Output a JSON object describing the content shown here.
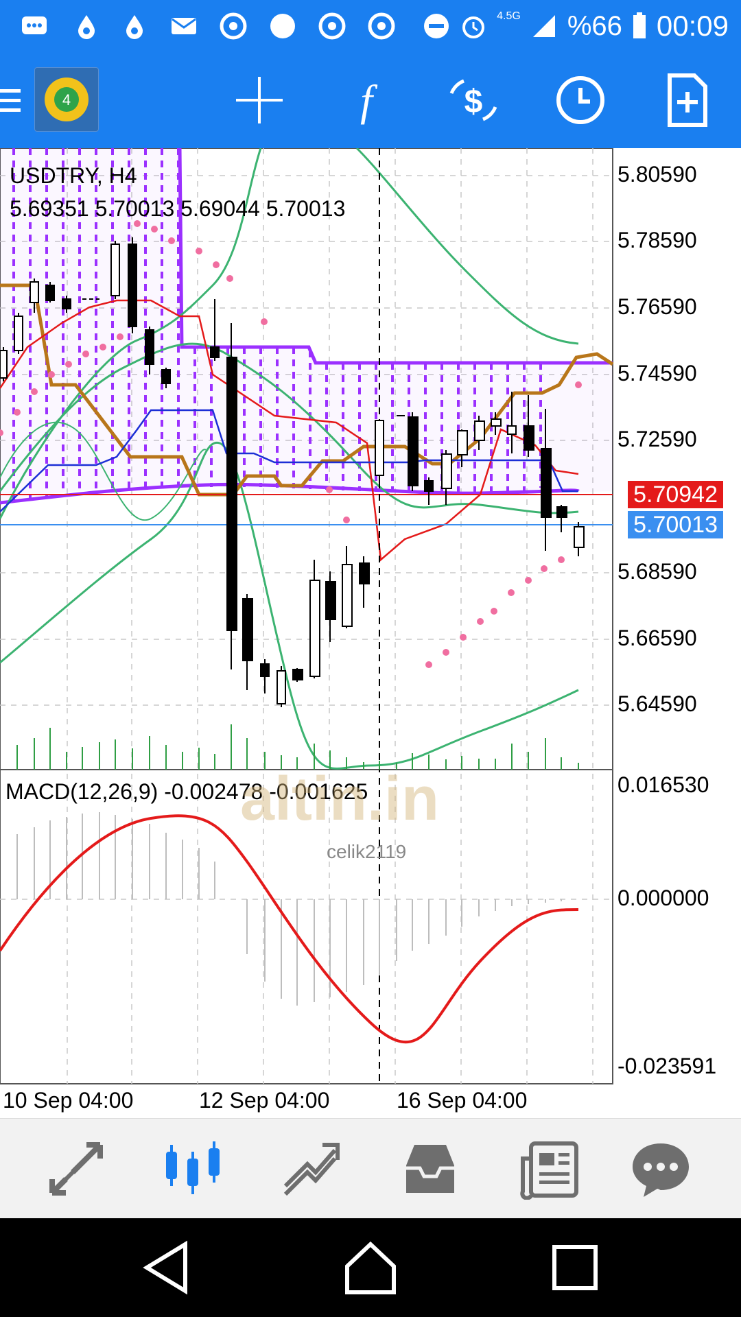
{
  "status_bar": {
    "battery": "%66",
    "time": "00:09",
    "network": "4.5G",
    "icons": [
      "messages-icon",
      "drop-icon",
      "drop-icon",
      "mail-icon",
      "chrome-icon",
      "circle-icon",
      "chrome-icon",
      "chrome-icon",
      "dnd-icon",
      "alarm-icon",
      "signal-icon",
      "battery-icon"
    ]
  },
  "toolbar": {
    "icons": [
      "menu-icon",
      "app-logo",
      "crosshair-icon",
      "indicator-f-icon",
      "trade-icon",
      "clock-icon",
      "new-order-icon"
    ]
  },
  "chart": {
    "symbol_label": "USDTRY, H4",
    "ohlc_label": "5.69351 5.70013 5.69044 5.70013",
    "price_axis": [
      "5.80590",
      "5.78590",
      "5.76590",
      "5.74590",
      "5.72590",
      "5.70942",
      "5.70013",
      "5.68590",
      "5.66590",
      "5.64590"
    ],
    "price_tag_red": "5.70942",
    "price_tag_blue": "5.70013",
    "macd_label": "MACD(12,26,9) -0.002478 -0.001625",
    "macd_axis": [
      "0.016530",
      "0.000000",
      "-0.023591"
    ],
    "time_axis": [
      "10 Sep 04:00",
      "12 Sep 04:00",
      "16 Sep 04:00"
    ],
    "watermark": "altin.in",
    "watermark_user": "celik2119",
    "colors": {
      "accent": "#1a7ff0",
      "cloud": "#9b30ff",
      "kijun": "#b8761a",
      "bollinger": "#3cb371",
      "macd": "#e41a1a",
      "sar": "#f06ea0"
    }
  },
  "bottom_nav": {
    "items": [
      "quotes-icon",
      "chart-icon",
      "trade-icon",
      "history-icon",
      "news-icon",
      "messages-icon"
    ],
    "active": "chart-icon"
  },
  "system_nav": {
    "items": [
      "back-icon",
      "home-icon",
      "recents-icon"
    ]
  }
}
